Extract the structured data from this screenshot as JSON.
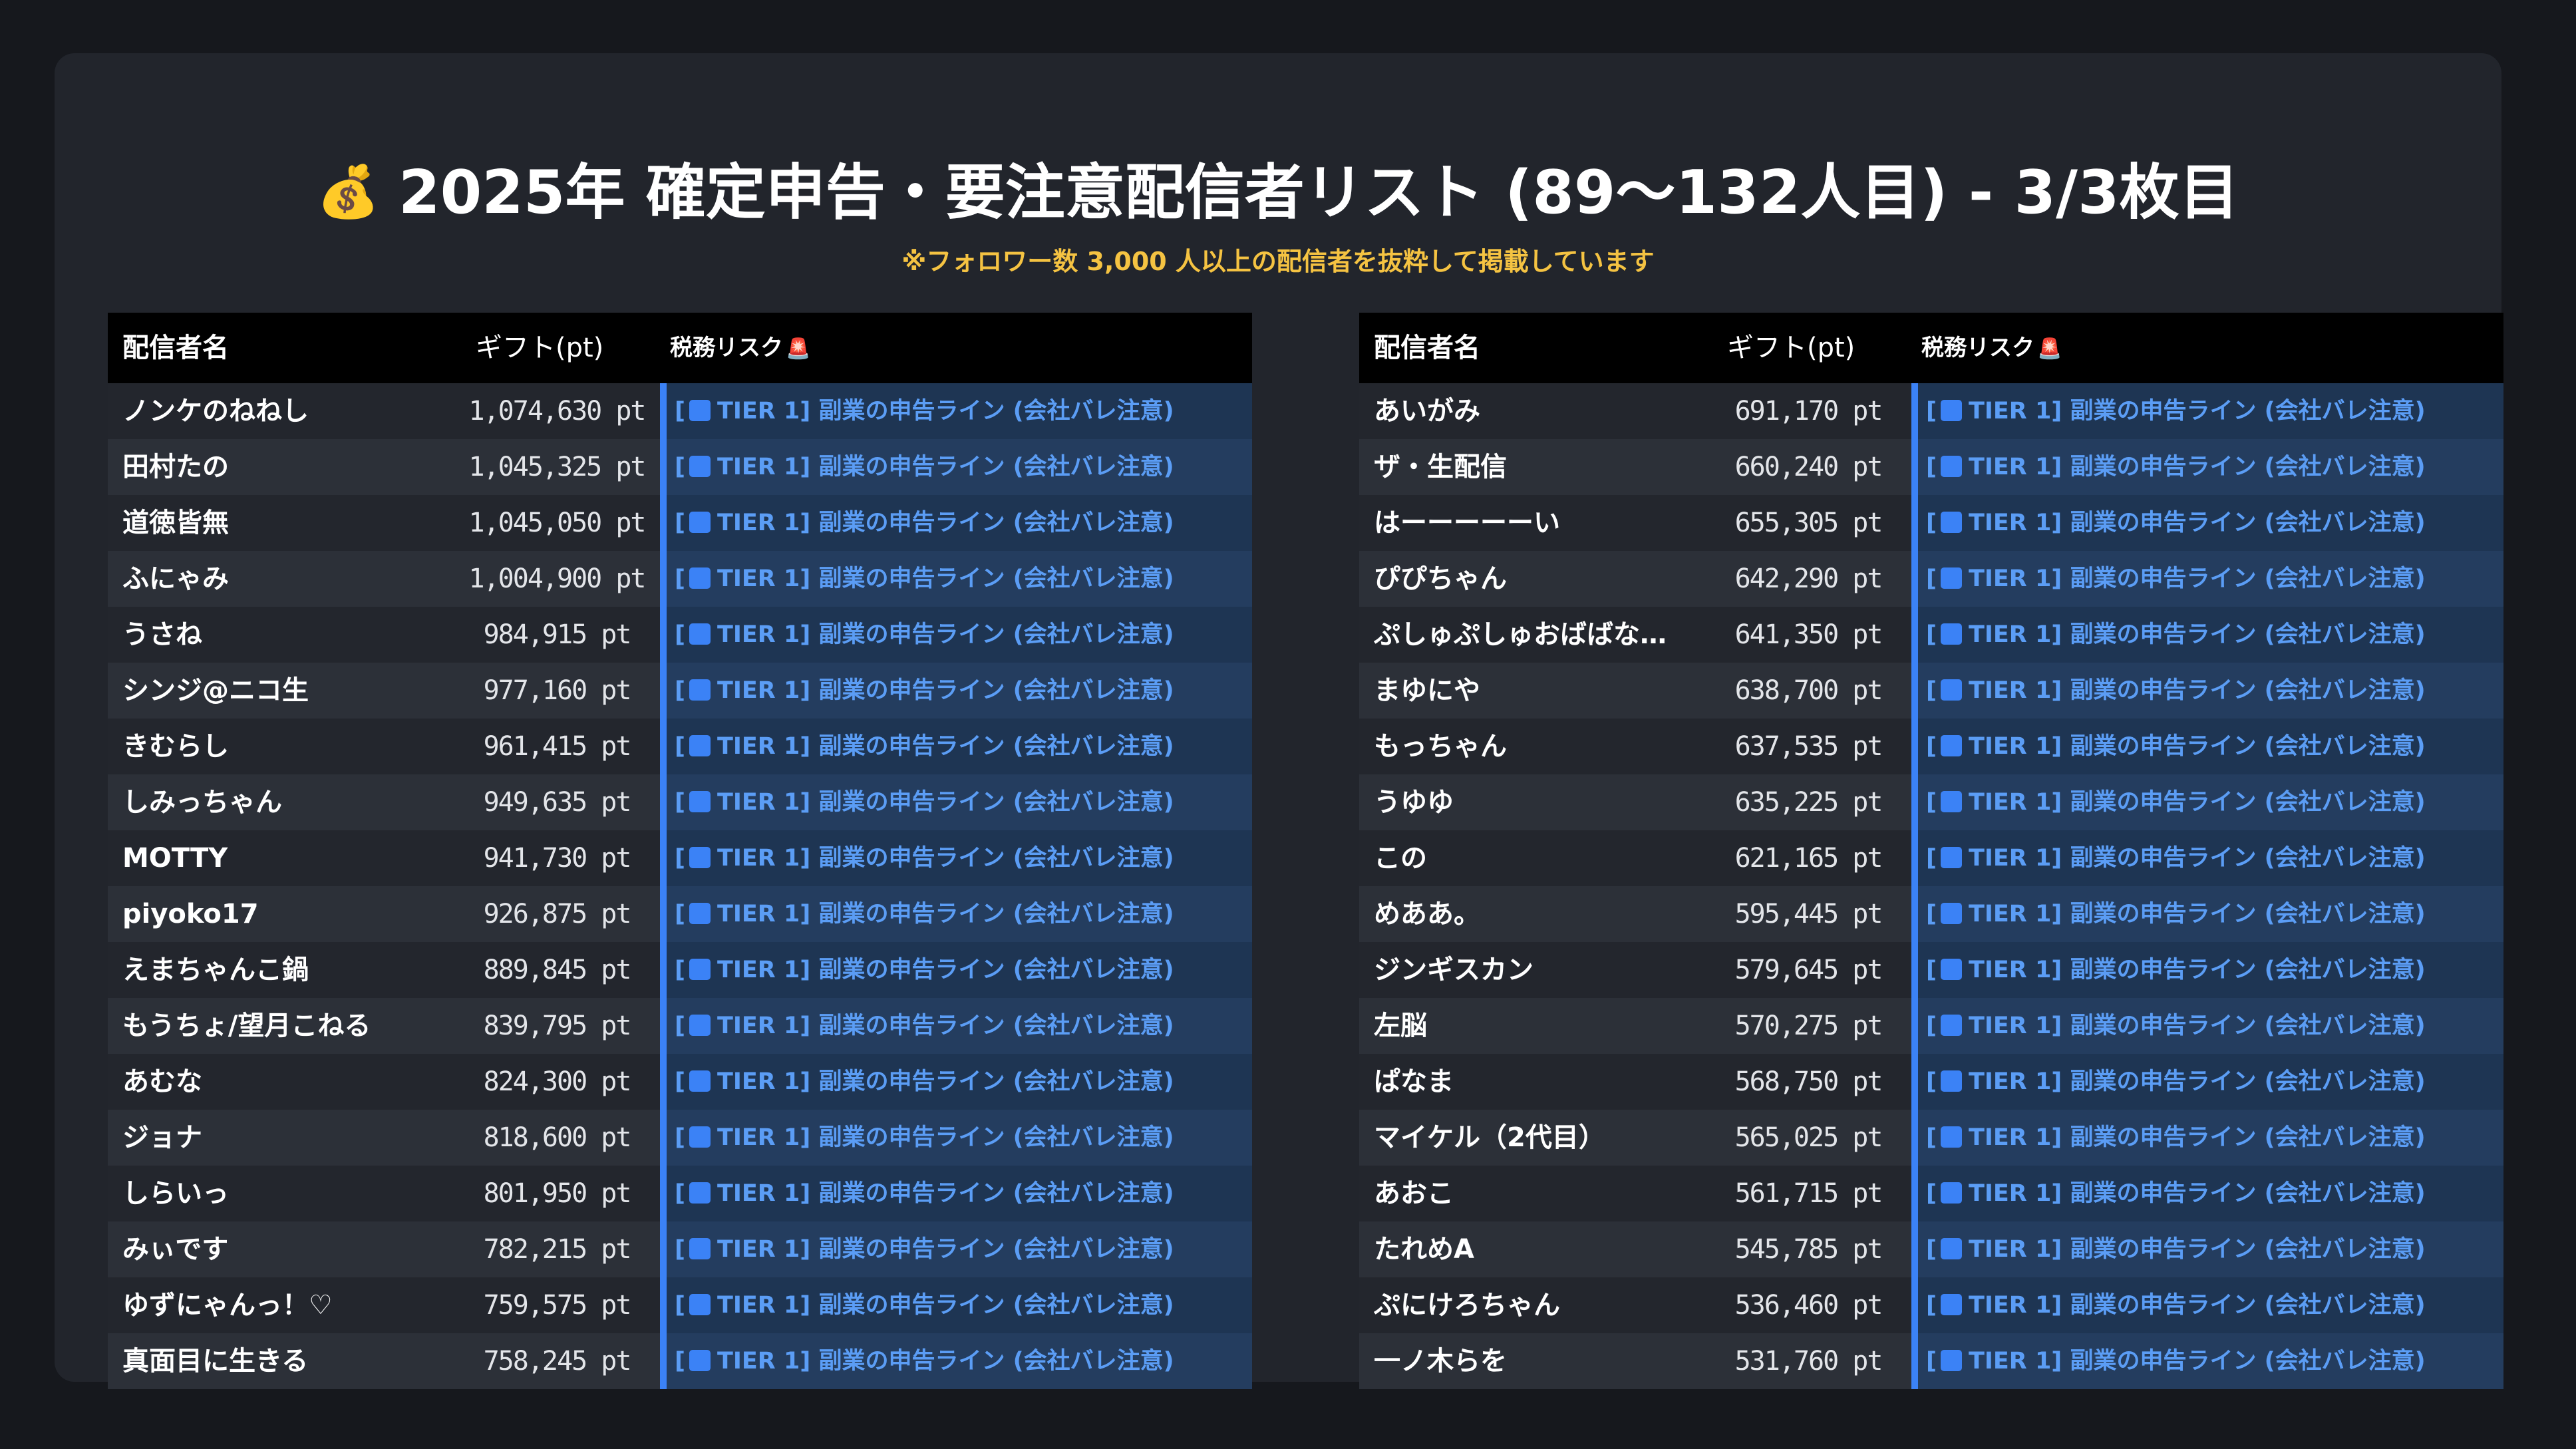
{
  "header": {
    "emoji": "💰",
    "title": "2025年 確定申告・要注意配信者リスト (89〜132人目) - 3/3枚目",
    "subtitle": "※フォロワー数 3,000 人以上の配信者を抜粋して掲載しています"
  },
  "columns": {
    "name": "配信者名",
    "gift": "ギフト(pt)",
    "risk": "税務リスク",
    "risk_icon": "🚨"
  },
  "risk_label": {
    "prefix": "[",
    "text": "TIER 1] 副業の申告ライン (会社バレ注意)"
  },
  "colors": {
    "background": "#16181d",
    "card": "#22252c",
    "subtitle": "#f5c342",
    "risk_accent": "#3b82f6",
    "risk_text": "#5b9df5"
  },
  "left_table": [
    {
      "name": "ノンケのねねし",
      "gift": "1,074,630 pt"
    },
    {
      "name": "田村たの",
      "gift": "1,045,325 pt"
    },
    {
      "name": "道徳皆無",
      "gift": "1,045,050 pt"
    },
    {
      "name": "ふにゃみ",
      "gift": "1,004,900 pt"
    },
    {
      "name": "うさね",
      "gift": "984,915 pt"
    },
    {
      "name": "シンジ@ニコ生",
      "gift": "977,160 pt"
    },
    {
      "name": "きむらし",
      "gift": "961,415 pt"
    },
    {
      "name": "しみっちゃん",
      "gift": "949,635 pt"
    },
    {
      "name": "MOTTY",
      "gift": "941,730 pt"
    },
    {
      "name": "piyoko17",
      "gift": "926,875 pt"
    },
    {
      "name": "えまちゃんこ鍋",
      "gift": "889,845 pt"
    },
    {
      "name": "もうちょ/望月こねる",
      "gift": "839,795 pt"
    },
    {
      "name": "あむな",
      "gift": "824,300 pt"
    },
    {
      "name": "ジョナ",
      "gift": "818,600 pt"
    },
    {
      "name": "しらいっ",
      "gift": "801,950 pt"
    },
    {
      "name": "みぃです",
      "gift": "782,215 pt"
    },
    {
      "name": "ゆずにゃんっ！♡",
      "gift": "759,575 pt"
    },
    {
      "name": "真面目に生きる",
      "gift": "758,245 pt"
    }
  ],
  "right_table": [
    {
      "name": "あいがみ",
      "gift": "691,170 pt"
    },
    {
      "name": "ザ・生配信",
      "gift": "660,240 pt"
    },
    {
      "name": "はーーーーーい",
      "gift": "655,305 pt"
    },
    {
      "name": "ぴぴちゃん",
      "gift": "642,290 pt"
    },
    {
      "name": "ぷしゅぷしゅおばばな…",
      "gift": "641,350 pt"
    },
    {
      "name": "まゆにや",
      "gift": "638,700 pt"
    },
    {
      "name": "もっちゃん",
      "gift": "637,535 pt"
    },
    {
      "name": "うゆゆ",
      "gift": "635,225 pt"
    },
    {
      "name": "この",
      "gift": "621,165 pt"
    },
    {
      "name": "めああ。",
      "gift": "595,445 pt"
    },
    {
      "name": "ジンギスカン",
      "gift": "579,645 pt"
    },
    {
      "name": "左脳",
      "gift": "570,275 pt"
    },
    {
      "name": "ぱなま",
      "gift": "568,750 pt"
    },
    {
      "name": "マイケル（2代目）",
      "gift": "565,025 pt"
    },
    {
      "name": "あおこ",
      "gift": "561,715 pt"
    },
    {
      "name": "たれめA",
      "gift": "545,785 pt"
    },
    {
      "name": "ぷにけろちゃん",
      "gift": "536,460 pt"
    },
    {
      "name": "一ノ木らを",
      "gift": "531,760 pt"
    }
  ]
}
